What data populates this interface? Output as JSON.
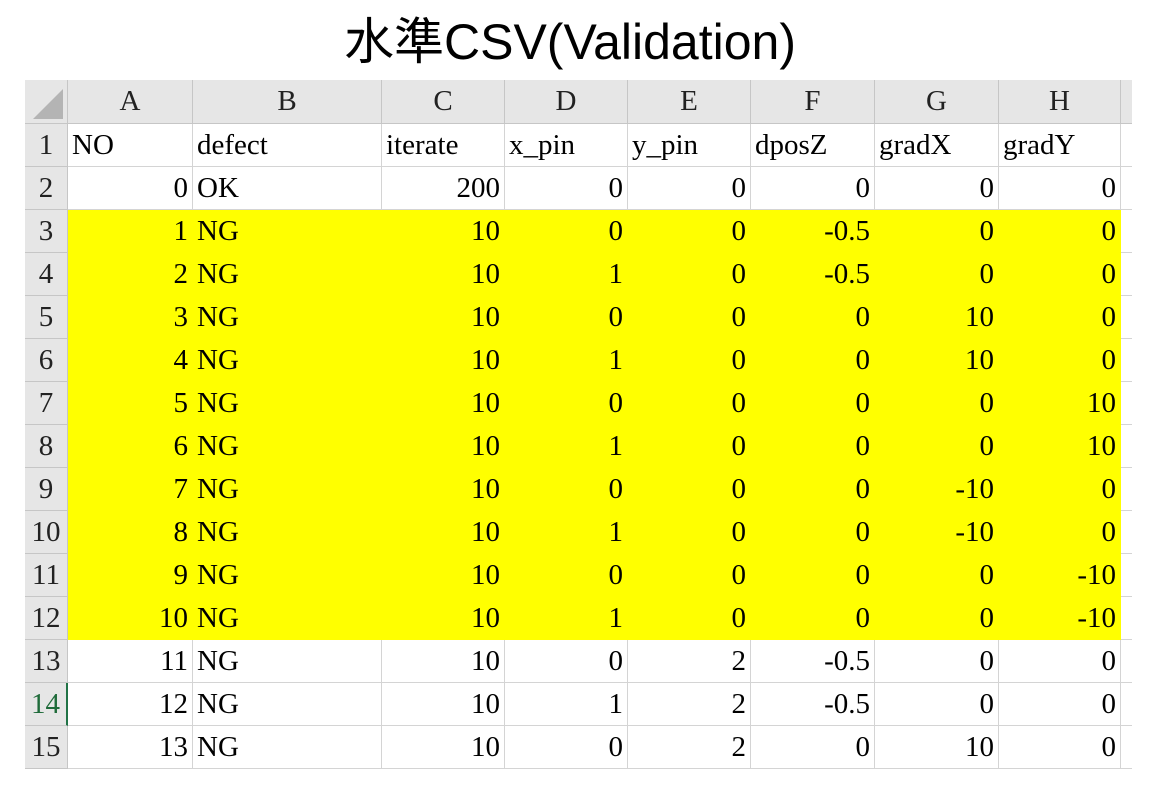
{
  "title": "水準CSV(Validation)",
  "colors": {
    "highlight": "#ffff00",
    "header_bg": "#e6e6e6",
    "gridline": "#d4d4d4",
    "selected_row_header": "#217346"
  },
  "columns": [
    "A",
    "B",
    "C",
    "D",
    "E",
    "F",
    "G",
    "H"
  ],
  "row_numbers": [
    "1",
    "2",
    "3",
    "4",
    "5",
    "6",
    "7",
    "8",
    "9",
    "10",
    "11",
    "12",
    "13",
    "14",
    "15"
  ],
  "selected_row_header": "14",
  "highlighted_rows": [
    "3",
    "4",
    "5",
    "6",
    "7",
    "8",
    "9",
    "10",
    "11",
    "12"
  ],
  "header_row": [
    "NO",
    "defect",
    "iterate",
    "x_pin",
    "y_pin",
    "dposZ",
    "gradX",
    "gradY"
  ],
  "rows": [
    [
      "0",
      "OK",
      "200",
      "0",
      "0",
      "0",
      "0",
      "0"
    ],
    [
      "1",
      "NG",
      "10",
      "0",
      "0",
      "-0.5",
      "0",
      "0"
    ],
    [
      "2",
      "NG",
      "10",
      "1",
      "0",
      "-0.5",
      "0",
      "0"
    ],
    [
      "3",
      "NG",
      "10",
      "0",
      "0",
      "0",
      "10",
      "0"
    ],
    [
      "4",
      "NG",
      "10",
      "1",
      "0",
      "0",
      "10",
      "0"
    ],
    [
      "5",
      "NG",
      "10",
      "0",
      "0",
      "0",
      "0",
      "10"
    ],
    [
      "6",
      "NG",
      "10",
      "1",
      "0",
      "0",
      "0",
      "10"
    ],
    [
      "7",
      "NG",
      "10",
      "0",
      "0",
      "0",
      "-10",
      "0"
    ],
    [
      "8",
      "NG",
      "10",
      "1",
      "0",
      "0",
      "-10",
      "0"
    ],
    [
      "9",
      "NG",
      "10",
      "0",
      "0",
      "0",
      "0",
      "-10"
    ],
    [
      "10",
      "NG",
      "10",
      "1",
      "0",
      "0",
      "0",
      "-10"
    ],
    [
      "11",
      "NG",
      "10",
      "0",
      "2",
      "-0.5",
      "0",
      "0"
    ],
    [
      "12",
      "NG",
      "10",
      "1",
      "2",
      "-0.5",
      "0",
      "0"
    ],
    [
      "13",
      "NG",
      "10",
      "0",
      "2",
      "0",
      "10",
      "0"
    ]
  ]
}
